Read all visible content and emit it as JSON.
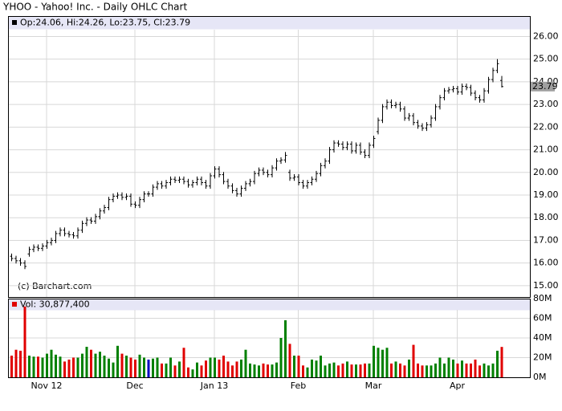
{
  "chart_data": {
    "type": "ohlc",
    "title": "YHOO - Yahoo! Inc. - Daily OHLC Chart",
    "legend_text": "Op:24.06, Hi:24.26, Lo:23.75, Cl:23.79",
    "annotation": "(c) Barchart.com",
    "volume_legend": "Vol: 30,877,400",
    "bar_color": "#000000",
    "up_color": "#008000",
    "down_color": "#e00000",
    "flat_color": "#0000c0",
    "grid": true,
    "categories": [
      null,
      null,
      null,
      null,
      null,
      null,
      null,
      null,
      "Nov 12",
      null,
      null,
      null,
      null,
      null,
      null,
      null,
      null,
      null,
      null,
      null,
      null,
      null,
      null,
      null,
      null,
      null,
      null,
      null,
      "Dec",
      null,
      null,
      null,
      null,
      null,
      null,
      null,
      null,
      null,
      null,
      null,
      null,
      null,
      null,
      null,
      null,
      null,
      "Jan 13",
      null,
      null,
      null,
      null,
      null,
      null,
      null,
      null,
      null,
      null,
      null,
      null,
      null,
      null,
      null,
      null,
      null,
      null,
      "Feb",
      null,
      null,
      null,
      null,
      null,
      null,
      null,
      null,
      null,
      null,
      null,
      null,
      null,
      null,
      null,
      null,
      "Mar",
      null,
      null,
      null,
      null,
      null,
      null,
      null,
      null,
      null,
      null,
      null,
      null,
      null,
      null,
      null,
      null,
      null,
      null,
      "Apr",
      null,
      null,
      null,
      null,
      null,
      null,
      null,
      null,
      null,
      null
    ],
    "open": [
      16.3,
      16.2,
      16.1,
      16.0,
      16.4,
      16.6,
      16.7,
      16.65,
      16.75,
      16.9,
      17.0,
      17.3,
      17.45,
      17.3,
      17.25,
      17.2,
      17.45,
      17.75,
      17.9,
      17.85,
      18.05,
      18.3,
      18.45,
      18.8,
      18.95,
      19.0,
      18.9,
      18.95,
      18.6,
      18.55,
      18.8,
      19.05,
      19.05,
      19.35,
      19.5,
      19.4,
      19.55,
      19.7,
      19.65,
      19.7,
      19.6,
      19.45,
      19.55,
      19.7,
      19.55,
      19.4,
      19.85,
      20.15,
      19.9,
      19.6,
      19.4,
      19.2,
      19.05,
      19.3,
      19.5,
      19.6,
      19.95,
      20.1,
      20.0,
      19.9,
      20.2,
      20.5,
      20.55,
      20.0,
      19.75,
      19.8,
      19.55,
      19.4,
      19.55,
      19.7,
      19.95,
      20.3,
      20.5,
      21.0,
      21.3,
      21.25,
      21.1,
      21.25,
      20.95,
      21.2,
      20.9,
      20.75,
      21.2,
      21.8,
      22.3,
      22.9,
      23.1,
      22.95,
      23.0,
      22.8,
      22.4,
      22.5,
      22.2,
      22.05,
      21.95,
      22.1,
      22.4,
      22.9,
      23.3,
      23.6,
      23.65,
      23.7,
      23.55,
      23.8,
      23.75,
      23.5,
      23.3,
      23.2,
      23.6,
      24.1,
      24.5,
      24.06
    ],
    "high": [
      16.42,
      16.32,
      16.22,
      16.12,
      16.72,
      16.82,
      16.82,
      16.87,
      17.02,
      17.12,
      17.42,
      17.57,
      17.57,
      17.42,
      17.37,
      17.57,
      17.87,
      18.02,
      18.02,
      18.17,
      18.42,
      18.57,
      18.92,
      19.07,
      19.12,
      19.12,
      19.07,
      19.07,
      18.72,
      18.92,
      19.17,
      19.17,
      19.47,
      19.62,
      19.62,
      19.67,
      19.82,
      19.82,
      19.82,
      19.82,
      19.72,
      19.67,
      19.82,
      19.82,
      19.67,
      19.97,
      20.27,
      20.27,
      20.02,
      19.72,
      19.52,
      19.32,
      19.42,
      19.62,
      19.72,
      20.07,
      20.22,
      20.22,
      20.12,
      20.32,
      20.62,
      20.67,
      20.9,
      20.12,
      19.92,
      19.92,
      19.67,
      19.67,
      19.82,
      20.07,
      20.42,
      20.62,
      21.12,
      21.42,
      21.42,
      21.37,
      21.37,
      21.37,
      21.32,
      21.32,
      21.02,
      21.32,
      21.62,
      22.42,
      23.02,
      23.22,
      23.22,
      23.12,
      23.12,
      22.92,
      22.62,
      22.62,
      22.32,
      22.17,
      22.22,
      22.52,
      23.02,
      23.42,
      23.72,
      23.77,
      23.82,
      23.82,
      23.92,
      23.92,
      23.87,
      23.62,
      23.42,
      23.72,
      24.22,
      24.62,
      25.0,
      24.26
    ],
    "low": [
      16.08,
      15.98,
      15.88,
      15.73,
      16.28,
      16.48,
      16.53,
      16.53,
      16.63,
      16.78,
      16.88,
      17.18,
      17.18,
      17.13,
      17.08,
      17.08,
      17.33,
      17.63,
      17.73,
      17.73,
      17.93,
      18.18,
      18.33,
      18.68,
      18.83,
      18.78,
      18.78,
      18.48,
      18.43,
      18.43,
      18.68,
      18.93,
      18.93,
      19.23,
      19.28,
      19.28,
      19.43,
      19.53,
      19.53,
      19.48,
      19.33,
      19.33,
      19.43,
      19.43,
      19.28,
      19.28,
      19.73,
      19.78,
      19.48,
      19.28,
      19.08,
      18.93,
      18.93,
      19.18,
      19.38,
      19.48,
      19.83,
      19.88,
      19.78,
      19.78,
      20.08,
      20.38,
      20.43,
      19.63,
      19.63,
      19.43,
      19.28,
      19.28,
      19.43,
      19.58,
      19.83,
      20.18,
      20.38,
      20.88,
      21.13,
      20.98,
      20.98,
      20.83,
      20.83,
      20.78,
      20.63,
      20.63,
      21.08,
      21.68,
      22.18,
      22.78,
      22.83,
      22.83,
      22.68,
      22.28,
      22.28,
      22.08,
      21.93,
      21.83,
      21.83,
      21.98,
      22.28,
      22.78,
      23.18,
      23.48,
      23.53,
      23.43,
      23.43,
      23.63,
      23.38,
      23.18,
      23.08,
      23.08,
      23.48,
      23.98,
      24.38,
      23.75
    ],
    "close": [
      16.2,
      16.1,
      16.0,
      15.85,
      16.6,
      16.7,
      16.65,
      16.75,
      16.9,
      17.0,
      17.3,
      17.45,
      17.3,
      17.25,
      17.2,
      17.45,
      17.75,
      17.9,
      17.85,
      18.05,
      18.3,
      18.45,
      18.8,
      18.95,
      19.0,
      18.9,
      18.95,
      18.6,
      18.55,
      18.8,
      19.05,
      19.05,
      19.35,
      19.5,
      19.4,
      19.55,
      19.7,
      19.65,
      19.7,
      19.6,
      19.45,
      19.55,
      19.7,
      19.55,
      19.4,
      19.85,
      20.15,
      19.9,
      19.6,
      19.4,
      19.2,
      19.05,
      19.3,
      19.5,
      19.6,
      19.95,
      20.1,
      20.0,
      19.9,
      20.2,
      20.5,
      20.55,
      20.75,
      19.75,
      19.8,
      19.55,
      19.4,
      19.55,
      19.7,
      19.95,
      20.3,
      20.5,
      21.0,
      21.3,
      21.25,
      21.1,
      21.25,
      20.95,
      21.2,
      20.9,
      20.75,
      21.2,
      21.5,
      22.3,
      22.9,
      23.1,
      22.95,
      23.0,
      22.8,
      22.4,
      22.5,
      22.2,
      22.05,
      21.95,
      22.1,
      22.4,
      22.9,
      23.3,
      23.6,
      23.65,
      23.7,
      23.55,
      23.8,
      23.75,
      23.5,
      23.3,
      23.2,
      23.6,
      24.1,
      24.5,
      24.8,
      23.79
    ],
    "volume": [
      22,
      28,
      27,
      72,
      22,
      21,
      21,
      20,
      24,
      28,
      23,
      21,
      16,
      18,
      20,
      20,
      24,
      31,
      28,
      24,
      26,
      22,
      19,
      15,
      32,
      24,
      22,
      20,
      18,
      23,
      20,
      18,
      19,
      20,
      14,
      14,
      20,
      12,
      16,
      30,
      10,
      8,
      15,
      12,
      17,
      20,
      20,
      18,
      22,
      16,
      12,
      16,
      18,
      28,
      14,
      13,
      12,
      14,
      13,
      13,
      15,
      40,
      58,
      34,
      22,
      22,
      12,
      10,
      18,
      17,
      22,
      12,
      14,
      15,
      12,
      14,
      16,
      13,
      13,
      13,
      14,
      14,
      32,
      30,
      28,
      30,
      14,
      16,
      14,
      12,
      18,
      33,
      14,
      12,
      12,
      12,
      14,
      20,
      14,
      20,
      18,
      14,
      17,
      14,
      14,
      18,
      12,
      14,
      12,
      14,
      27,
      30.8774
    ],
    "ylim": [
      14.5,
      26.3
    ],
    "yticks": [
      {
        "value": 15,
        "label": "15.00"
      },
      {
        "value": 16,
        "label": "16.00"
      },
      {
        "value": 17,
        "label": "17.00"
      },
      {
        "value": 18,
        "label": "18.00"
      },
      {
        "value": 19,
        "label": "19.00"
      },
      {
        "value": 20,
        "label": "20.00"
      },
      {
        "value": 21,
        "label": "21.00"
      },
      {
        "value": 22,
        "label": "22.00"
      },
      {
        "value": 23,
        "label": "23.00"
      },
      {
        "value": 24,
        "label": "24.00"
      },
      {
        "value": 25,
        "label": "25.00"
      },
      {
        "value": 26,
        "label": "26.00"
      }
    ],
    "y2lim": [
      0,
      80
    ],
    "y2ticks": [
      {
        "value": 0,
        "label": "0M"
      },
      {
        "value": 20,
        "label": "20M"
      },
      {
        "value": 40,
        "label": "40M"
      },
      {
        "value": 60,
        "label": "60M"
      },
      {
        "value": 80,
        "label": "80M"
      }
    ]
  }
}
